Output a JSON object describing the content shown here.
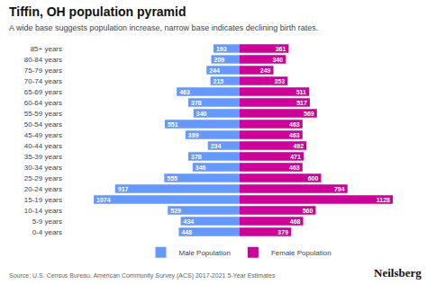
{
  "chart_data": {
    "type": "bar",
    "orientation": "horizontal",
    "title": "Tiffin, OH population pyramid",
    "subtitle": "A wide base suggests population increase, narrow base indicates declining birth rates.",
    "source": "Source: U.S. Census Bureau, American Community Survey (ACS) 2017-2021 5-Year Estimates",
    "branding": "Neilsberg",
    "categories": [
      "0-4 years",
      "5-9 years",
      "10-14 years",
      "15-19 years",
      "20-24 years",
      "25-29 years",
      "30-34 years",
      "35-39 years",
      "40-44 years",
      "45-49 years",
      "50-54 years",
      "55-59 years",
      "60-64 years",
      "65-69 years",
      "70-74 years",
      "75-79 years",
      "80-84 years",
      "85+ years"
    ],
    "series": [
      {
        "name": "Male Population",
        "color": "#6699ff",
        "values": [
          448,
          434,
          529,
          1074,
          917,
          555,
          346,
          378,
          234,
          399,
          551,
          340,
          378,
          463,
          215,
          244,
          209,
          193
        ]
      },
      {
        "name": "Female Population",
        "color": "#cc0099",
        "values": [
          379,
          468,
          560,
          1128,
          794,
          600,
          463,
          471,
          492,
          463,
          463,
          569,
          517,
          511,
          353,
          249,
          340,
          361
        ]
      }
    ],
    "xlim": [
      -1300,
      1300
    ],
    "data_labels": true,
    "tick_labels": "y",
    "grid": false,
    "legend": "bottom"
  }
}
